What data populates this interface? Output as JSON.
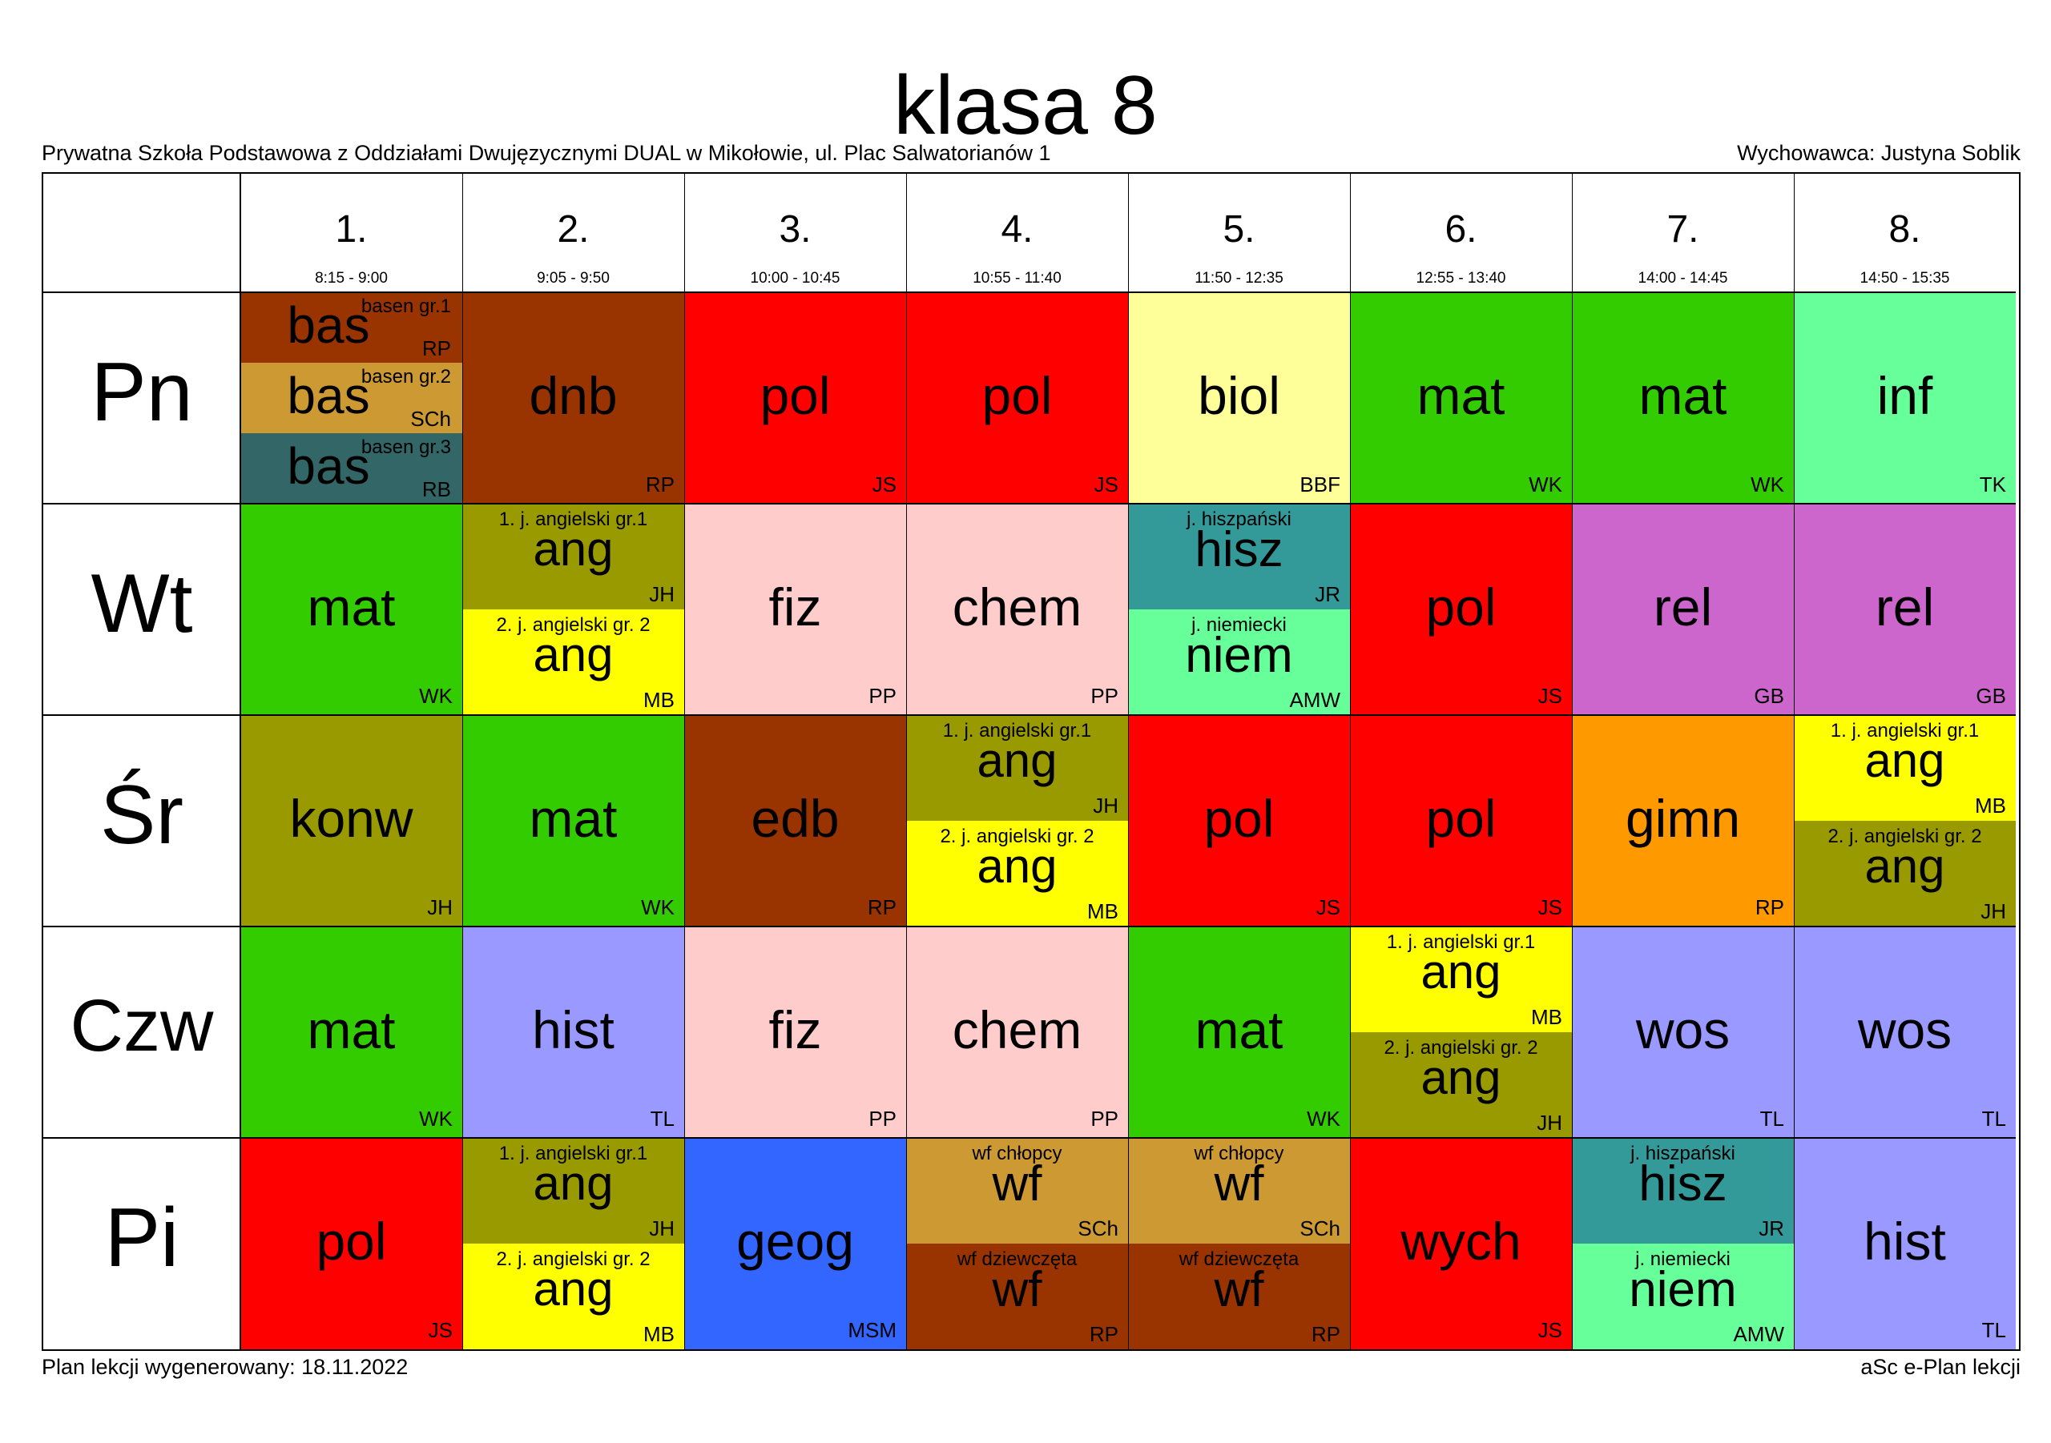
{
  "title": "klasa 8",
  "school": "Prywatna Szkoła Podstawowa z Oddziałami Dwujęzycznymi DUAL w Mikołowie, ul. Plac Salwatorianów 1",
  "teacher": "Wychowawca: Justyna Soblik",
  "footer": {
    "generated": "Plan lekcji wygenerowany: 18.11.2022",
    "app": "aSc e-Plan lekcji"
  },
  "periods": [
    {
      "num": "1.",
      "time": "8:15 - 9:00"
    },
    {
      "num": "2.",
      "time": "9:05 - 9:50"
    },
    {
      "num": "3.",
      "time": "10:00 - 10:45"
    },
    {
      "num": "4.",
      "time": "10:55 - 11:40"
    },
    {
      "num": "5.",
      "time": "11:50 - 12:35"
    },
    {
      "num": "6.",
      "time": "12:55 - 13:40"
    },
    {
      "num": "7.",
      "time": "14:00 - 14:45"
    },
    {
      "num": "8.",
      "time": "14:50 - 15:35"
    }
  ],
  "days": [
    {
      "name": "Pn",
      "slots": [
        [
          {
            "s": "bas",
            "g": "basen gr.1",
            "t": "RP",
            "c": "#993300"
          },
          {
            "s": "bas",
            "g": "basen gr.2",
            "t": "SCh",
            "c": "#cc9933"
          },
          {
            "s": "bas",
            "g": "basen gr.3",
            "t": "RB",
            "c": "#336666"
          }
        ],
        [
          {
            "s": "dnb",
            "t": "RP",
            "c": "#993300"
          }
        ],
        [
          {
            "s": "pol",
            "t": "JS",
            "c": "#ff0000"
          }
        ],
        [
          {
            "s": "pol",
            "t": "JS",
            "c": "#ff0000"
          }
        ],
        [
          {
            "s": "biol",
            "t": "BBF",
            "c": "#ffff99"
          }
        ],
        [
          {
            "s": "mat",
            "t": "WK",
            "c": "#33cc00"
          }
        ],
        [
          {
            "s": "mat",
            "t": "WK",
            "c": "#33cc00"
          }
        ],
        [
          {
            "s": "inf",
            "t": "TK",
            "c": "#66ff99"
          }
        ]
      ]
    },
    {
      "name": "Wt",
      "slots": [
        [
          {
            "s": "mat",
            "t": "WK",
            "c": "#33cc00"
          }
        ],
        [
          {
            "s": "ang",
            "g": "1. j. angielski gr.1",
            "t": "JH",
            "c": "#999900"
          },
          {
            "s": "ang",
            "g": "2. j. angielski gr. 2",
            "t": "MB",
            "c": "#ffff00"
          }
        ],
        [
          {
            "s": "fiz",
            "t": "PP",
            "c": "#ffcccc"
          }
        ],
        [
          {
            "s": "chem",
            "t": "PP",
            "c": "#ffcccc"
          }
        ],
        [
          {
            "s": "hisz",
            "g": "j. hiszpański",
            "t": "JR",
            "c": "#339999"
          },
          {
            "s": "niem",
            "g": "j. niemiecki",
            "t": "AMW",
            "c": "#66ff99"
          }
        ],
        [
          {
            "s": "pol",
            "t": "JS",
            "c": "#ff0000"
          }
        ],
        [
          {
            "s": "rel",
            "t": "GB",
            "c": "#cc66cc"
          }
        ],
        [
          {
            "s": "rel",
            "t": "GB",
            "c": "#cc66cc"
          }
        ]
      ]
    },
    {
      "name": "Śr",
      "slots": [
        [
          {
            "s": "konw",
            "t": "JH",
            "c": "#999900"
          }
        ],
        [
          {
            "s": "mat",
            "t": "WK",
            "c": "#33cc00"
          }
        ],
        [
          {
            "s": "edb",
            "t": "RP",
            "c": "#993300"
          }
        ],
        [
          {
            "s": "ang",
            "g": "1. j. angielski gr.1",
            "t": "JH",
            "c": "#999900"
          },
          {
            "s": "ang",
            "g": "2. j. angielski gr. 2",
            "t": "MB",
            "c": "#ffff00"
          }
        ],
        [
          {
            "s": "pol",
            "t": "JS",
            "c": "#ff0000"
          }
        ],
        [
          {
            "s": "pol",
            "t": "JS",
            "c": "#ff0000"
          }
        ],
        [
          {
            "s": "gimn",
            "t": "RP",
            "c": "#ff9900"
          }
        ],
        [
          {
            "s": "ang",
            "g": "1. j. angielski gr.1",
            "t": "MB",
            "c": "#ffff00"
          },
          {
            "s": "ang",
            "g": "2. j. angielski gr. 2",
            "t": "JH",
            "c": "#999900"
          }
        ]
      ]
    },
    {
      "name": "Czw",
      "slots": [
        [
          {
            "s": "mat",
            "t": "WK",
            "c": "#33cc00"
          }
        ],
        [
          {
            "s": "hist",
            "t": "TL",
            "c": "#9999ff"
          }
        ],
        [
          {
            "s": "fiz",
            "t": "PP",
            "c": "#ffcccc"
          }
        ],
        [
          {
            "s": "chem",
            "t": "PP",
            "c": "#ffcccc"
          }
        ],
        [
          {
            "s": "mat",
            "t": "WK",
            "c": "#33cc00"
          }
        ],
        [
          {
            "s": "ang",
            "g": "1. j. angielski gr.1",
            "t": "MB",
            "c": "#ffff00"
          },
          {
            "s": "ang",
            "g": "2. j. angielski gr. 2",
            "t": "JH",
            "c": "#999900"
          }
        ],
        [
          {
            "s": "wos",
            "t": "TL",
            "c": "#9999ff"
          }
        ],
        [
          {
            "s": "wos",
            "t": "TL",
            "c": "#9999ff"
          }
        ]
      ]
    },
    {
      "name": "Pi",
      "slots": [
        [
          {
            "s": "pol",
            "t": "JS",
            "c": "#ff0000"
          }
        ],
        [
          {
            "s": "ang",
            "g": "1. j. angielski gr.1",
            "t": "JH",
            "c": "#999900"
          },
          {
            "s": "ang",
            "g": "2. j. angielski gr. 2",
            "t": "MB",
            "c": "#ffff00"
          }
        ],
        [
          {
            "s": "geog",
            "t": "MSM",
            "c": "#3366ff"
          }
        ],
        [
          {
            "s": "wf",
            "g": "wf chłopcy",
            "t": "SCh",
            "c": "#cc9933"
          },
          {
            "s": "wf",
            "g": "wf dziewczęta",
            "t": "RP",
            "c": "#993300"
          }
        ],
        [
          {
            "s": "wf",
            "g": "wf chłopcy",
            "t": "SCh",
            "c": "#cc9933"
          },
          {
            "s": "wf",
            "g": "wf dziewczęta",
            "t": "RP",
            "c": "#993300"
          }
        ],
        [
          {
            "s": "wych",
            "t": "JS",
            "c": "#ff0000"
          }
        ],
        [
          {
            "s": "hisz",
            "g": "j. hiszpański",
            "t": "JR",
            "c": "#339999"
          },
          {
            "s": "niem",
            "g": "j. niemiecki",
            "t": "AMW",
            "c": "#66ff99"
          }
        ],
        [
          {
            "s": "hist",
            "t": "TL",
            "c": "#9999ff"
          }
        ]
      ]
    }
  ]
}
